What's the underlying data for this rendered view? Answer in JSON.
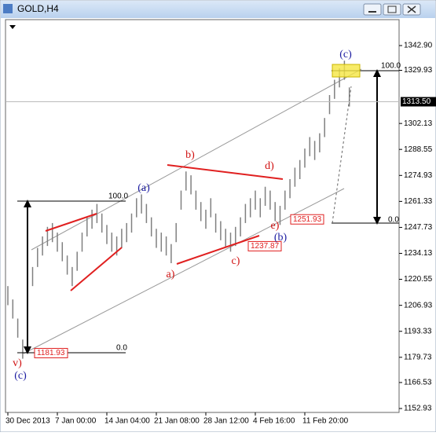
{
  "chart_data": {
    "type": "range",
    "title": "GOLD,H4",
    "categories": [
      "30 Dec 2013",
      null,
      null,
      null,
      null,
      null,
      null,
      null,
      null,
      null,
      "7 Jan 00:00",
      null,
      null,
      null,
      null,
      null,
      null,
      null,
      null,
      null,
      "14 Jan 04:00",
      null,
      null,
      null,
      null,
      null,
      null,
      null,
      null,
      null,
      "21 Jan 08:00",
      null,
      null,
      null,
      null,
      null,
      null,
      null,
      null,
      null,
      "28 Jan 12:00",
      null,
      null,
      null,
      null,
      null,
      null,
      null,
      null,
      null,
      "4 Feb 16:00",
      null,
      null,
      null,
      null,
      null,
      null,
      null,
      null,
      null,
      "11 Feb 20:00",
      null,
      null,
      null,
      null,
      null,
      null,
      null,
      null,
      null
    ],
    "high": [
      1217,
      1210,
      1200,
      1189,
      1205,
      1227,
      1237,
      1243,
      1248,
      1250,
      1245,
      1240,
      1233,
      1227,
      1235,
      1245,
      1253,
      1257,
      1260,
      1255,
      1249,
      1245,
      1243,
      1247,
      1250,
      1255,
      1263,
      1265,
      1260,
      1253,
      1247,
      1245,
      1243,
      1239,
      1250,
      1267,
      1277,
      1275,
      1267,
      1261,
      1257,
      1263,
      1255,
      1251,
      1247,
      1245,
      1248,
      1253,
      1260,
      1263,
      1267,
      1263,
      1269,
      1267,
      1261,
      1259,
      1267,
      1273,
      1279,
      1283,
      1289,
      1295,
      1293,
      1297,
      1305,
      1317,
      1325,
      1331,
      1335,
      1321
    ],
    "low": [
      1207,
      1200,
      1190,
      1179,
      1195,
      1217,
      1227,
      1233,
      1238,
      1240,
      1235,
      1230,
      1223,
      1217,
      1225,
      1235,
      1243,
      1247,
      1250,
      1245,
      1239,
      1235,
      1233,
      1237,
      1240,
      1245,
      1253,
      1255,
      1250,
      1243,
      1237,
      1235,
      1233,
      1229,
      1240,
      1257,
      1267,
      1265,
      1257,
      1251,
      1247,
      1253,
      1245,
      1241,
      1237,
      1235,
      1238,
      1243,
      1250,
      1253,
      1257,
      1253,
      1259,
      1257,
      1251,
      1249,
      1257,
      1263,
      1269,
      1273,
      1279,
      1285,
      1283,
      1287,
      1295,
      1307,
      1315,
      1321,
      1325,
      1311
    ],
    "color": "#808080",
    "ylim": [
      1150.87,
      1356.47
    ],
    "yticks": [
      {
        "value": 1342.9,
        "label": "1342.90"
      },
      1329.93,
      1302.13,
      1288.55,
      1274.93,
      1261.33,
      1247.73,
      1234.13,
      1220.55,
      1206.93,
      1193.33,
      1179.73,
      1166.53,
      1152.93
    ],
    "current_price": {
      "value": 1313.5,
      "label": "1313.50"
    },
    "price_tags": [
      1181.93,
      1237.87,
      1251.93
    ],
    "annotations": [
      "(c)",
      "100.0",
      "b)",
      "d)",
      "(a)",
      "100.0",
      "e)",
      "(b)",
      "0.0",
      "a)",
      "c)",
      "0.0",
      "v)",
      "(c)"
    ]
  }
}
